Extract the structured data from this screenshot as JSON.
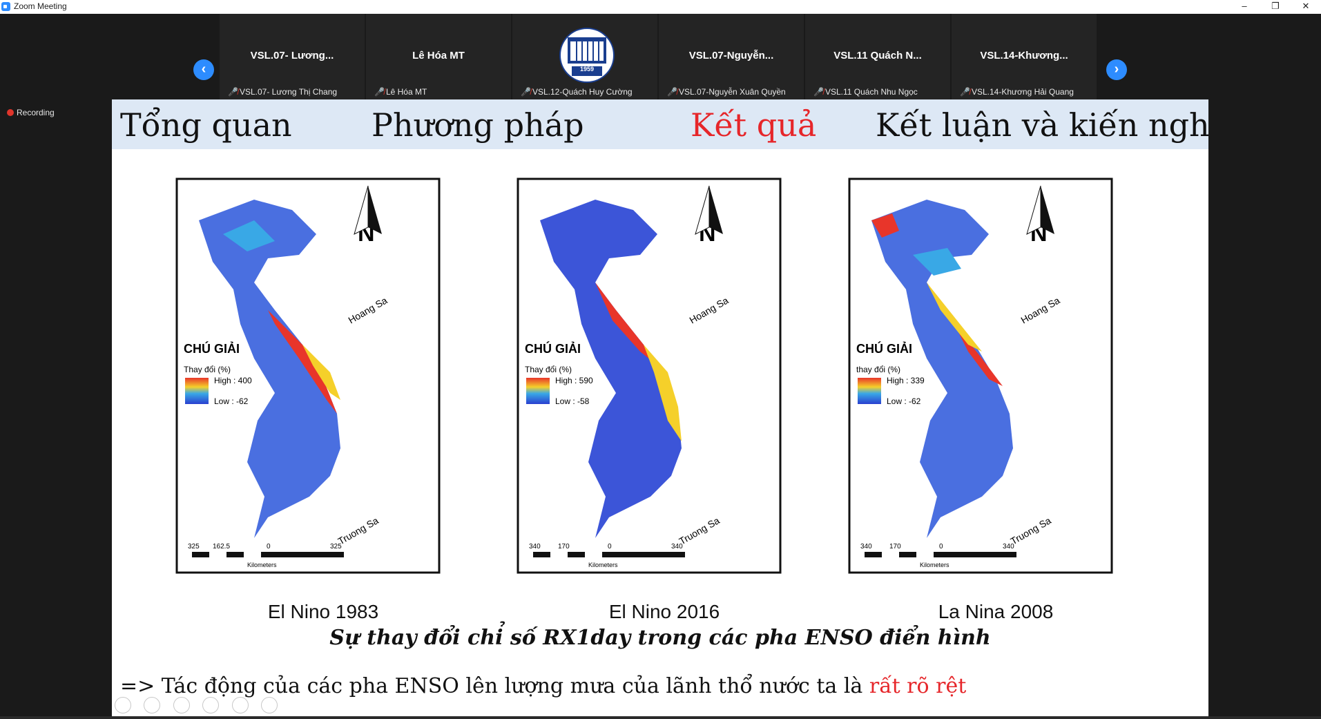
{
  "window": {
    "title": "Zoom Meeting",
    "controls": [
      "–",
      "❐",
      "✕"
    ]
  },
  "participants": [
    {
      "tile_name": "VSL.07-  Lương...",
      "footer": "VSL.07- Lương Thị Chang"
    },
    {
      "tile_name": "Lê Hóa MT",
      "footer": "Lê Hóa MT"
    },
    {
      "tile_name": "",
      "footer": "VSL.12-Quách Huy Cường"
    },
    {
      "tile_name": "VSL.07-Nguyễn...",
      "footer": "VSL.07-Nguyễn Xuân Quyền"
    },
    {
      "tile_name": "VSL.11  Quách  N...",
      "footer": "VSL.11 Quách Nhu Ngọc"
    },
    {
      "tile_name": "VSL.14-Khương...",
      "footer": "VSL.14-Khương Hải Quang"
    }
  ],
  "logo_year": "1959",
  "recording": "Recording",
  "slide": {
    "nav": [
      "Tổng quan",
      "Phương pháp",
      "Kết quả",
      "Kết luận và kiến nghị"
    ],
    "maps": [
      {
        "caption": "El Nino 1983",
        "legend_title": "CHÚ GIẢI",
        "legend_sub": "Thay đổi (%)",
        "high": "High : 400",
        "low": "Low : -62",
        "scale": [
          "325",
          "162.5",
          "0",
          "325"
        ]
      },
      {
        "caption": "El Nino 2016",
        "legend_title": "CHÚ GIẢI",
        "legend_sub": "Thay đổi (%)",
        "high": "High : 590",
        "low": "Low : -58",
        "scale": [
          "340",
          "170",
          "0",
          "340"
        ]
      },
      {
        "caption": "La Nina 2008",
        "legend_title": "CHÚ GIẢI",
        "legend_sub": "thay đổi (%)",
        "high": "High : 339",
        "low": "Low : -62",
        "scale": [
          "340",
          "170",
          "0",
          "340"
        ]
      }
    ],
    "north_label": "N",
    "hoang_sa": "Hoang Sa",
    "truong_sa": "Truong Sa",
    "scale_unit": "Kilometers",
    "subtitle": "Sự thay đổi chỉ số RX1day trong các pha ENSO điển hình",
    "conclusion": "=> Tác động của các pha ENSO lên lượng mưa của lãnh thổ nước ta là",
    "conclusion_emph": "rất rõ rệt"
  },
  "colors": {
    "accent_blue": "#2d8cff",
    "active_nav": "#e6262a",
    "nav_bg": "#dde8f5"
  }
}
